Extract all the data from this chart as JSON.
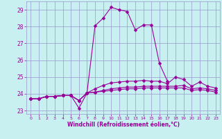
{
  "xlabel": "Windchill (Refroidissement éolien,°C)",
  "hours": [
    0,
    1,
    2,
    3,
    4,
    5,
    6,
    7,
    8,
    9,
    10,
    11,
    12,
    13,
    14,
    15,
    16,
    17,
    18,
    19,
    20,
    21,
    22,
    23
  ],
  "line1": [
    23.7,
    23.7,
    23.85,
    23.85,
    23.9,
    23.9,
    23.15,
    24.05,
    28.05,
    28.5,
    29.15,
    29.0,
    28.9,
    27.8,
    28.1,
    28.1,
    25.8,
    24.75,
    null,
    null,
    null,
    null,
    null,
    null
  ],
  "line2": [
    23.7,
    23.7,
    23.85,
    23.85,
    23.9,
    23.9,
    23.6,
    24.05,
    24.3,
    24.5,
    24.65,
    24.7,
    24.75,
    24.75,
    24.8,
    24.75,
    24.75,
    24.6,
    25.0,
    24.85,
    24.45,
    24.7,
    24.45,
    24.35
  ],
  "line3": [
    23.7,
    23.7,
    23.85,
    23.85,
    23.9,
    23.9,
    23.6,
    24.05,
    24.1,
    24.2,
    24.3,
    24.35,
    24.4,
    24.4,
    24.45,
    24.45,
    24.45,
    24.45,
    24.45,
    24.5,
    24.3,
    24.35,
    24.3,
    24.2
  ],
  "line4": [
    23.7,
    23.7,
    23.85,
    23.85,
    23.9,
    23.9,
    23.6,
    24.05,
    24.1,
    24.15,
    24.2,
    24.25,
    24.3,
    24.3,
    24.35,
    24.35,
    24.35,
    24.35,
    24.35,
    24.35,
    24.2,
    24.25,
    24.2,
    24.1
  ],
  "line_color": "#990099",
  "bg_color": "#c8f0f0",
  "grid_color": "#9999cc",
  "ylim": [
    22.8,
    29.5
  ],
  "yticks": [
    23,
    24,
    25,
    26,
    27,
    28,
    29
  ],
  "xlim": [
    -0.5,
    23.5
  ],
  "markersize": 2.5
}
